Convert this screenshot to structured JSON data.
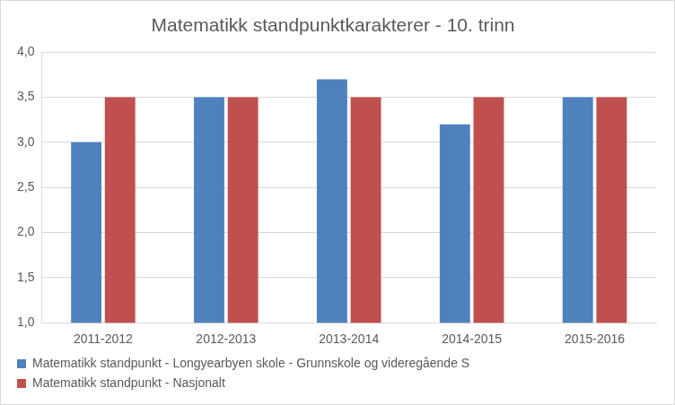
{
  "chart_data": {
    "type": "bar",
    "title": "Matematikk standpunktkarakterer - 10. trinn",
    "categories": [
      "2011-2012",
      "2012-2013",
      "2013-2014",
      "2014-2015",
      "2015-2016"
    ],
    "series": [
      {
        "name": "Matematikk standpunkt - Longyearbyen skole - Grunnskole og videregående S",
        "color": "#4f81bd",
        "values": [
          3.0,
          3.5,
          3.7,
          3.2,
          3.5
        ]
      },
      {
        "name": "Matematikk standpunkt - Nasjonalt",
        "color": "#c0504d",
        "values": [
          3.5,
          3.5,
          3.5,
          3.5,
          3.5
        ]
      }
    ],
    "ylim": [
      1.0,
      4.0
    ],
    "yticks": [
      {
        "value": 1.0,
        "label": "1,0"
      },
      {
        "value": 1.5,
        "label": "1,5"
      },
      {
        "value": 2.0,
        "label": "2,0"
      },
      {
        "value": 2.5,
        "label": "2,5"
      },
      {
        "value": 3.0,
        "label": "3,0"
      },
      {
        "value": 3.5,
        "label": "3,5"
      },
      {
        "value": 4.0,
        "label": "4,0"
      }
    ],
    "grid": true,
    "legend": "bottom"
  }
}
